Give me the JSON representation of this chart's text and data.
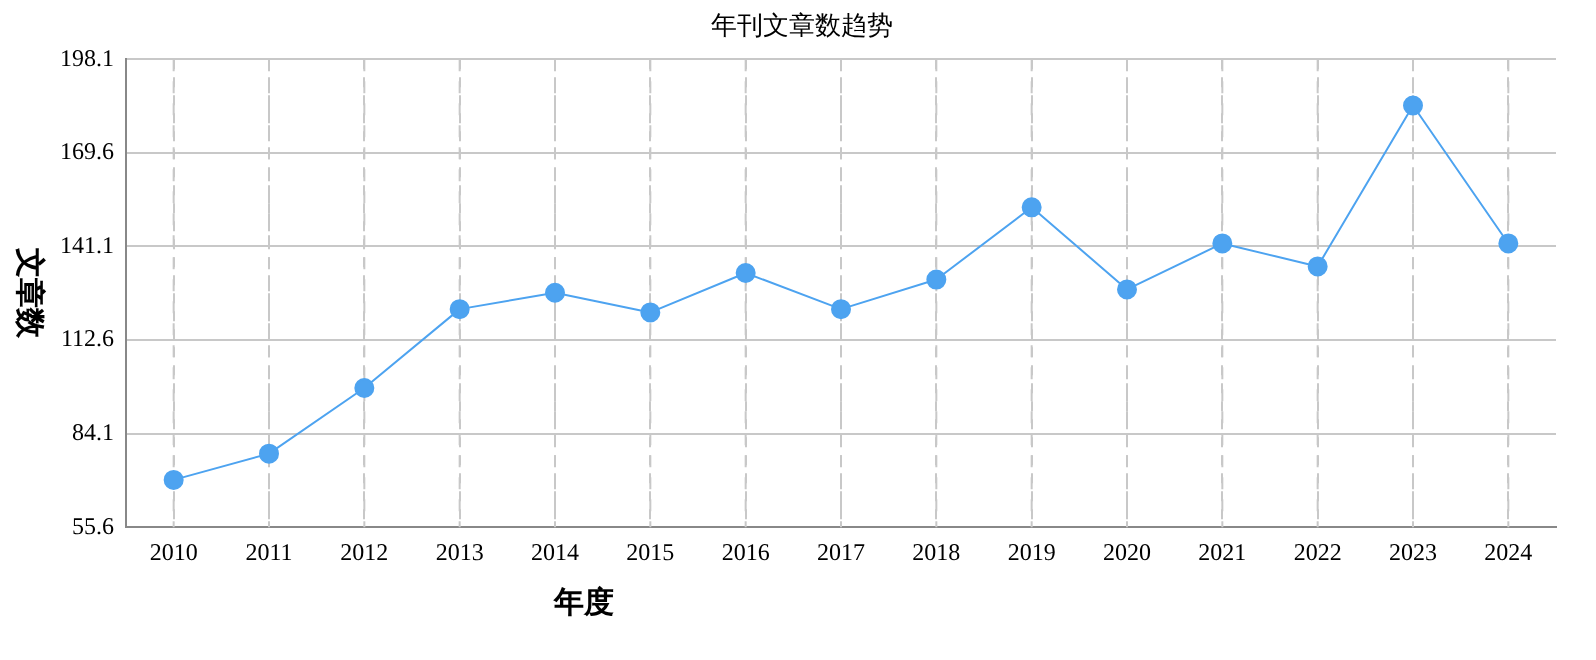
{
  "chart_data": {
    "type": "line",
    "title": "年刊文章数趋势",
    "xlabel": "年度",
    "ylabel": "文章数",
    "categories": [
      "2010",
      "2011",
      "2012",
      "2013",
      "2014",
      "2015",
      "2016",
      "2017",
      "2018",
      "2019",
      "2020",
      "2021",
      "2022",
      "2023",
      "2024"
    ],
    "series": [
      {
        "color": "#4da3f0",
        "values": [
          70,
          78,
          98,
          122,
          127,
          121,
          133,
          122,
          131,
          153,
          128,
          142,
          135,
          184,
          142
        ]
      }
    ],
    "ylim": [
      55.6,
      198.1
    ],
    "yticks": [
      55.6,
      84.1,
      112.6,
      141.1,
      169.6,
      198.1
    ],
    "grid": true,
    "legend": false,
    "marker": "circle",
    "line_style": "solid"
  }
}
